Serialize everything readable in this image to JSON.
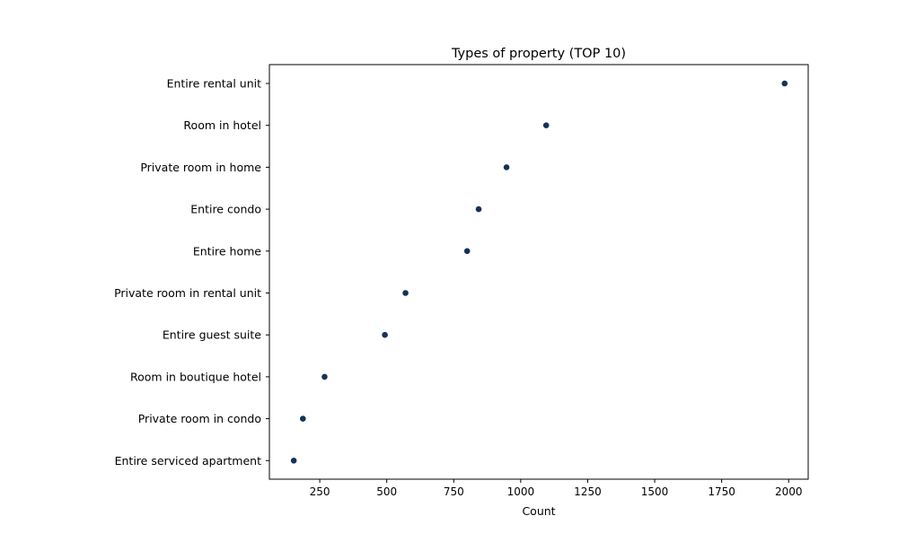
{
  "chart_data": {
    "type": "scatter",
    "title": "Types of property (TOP 10)",
    "xlabel": "Count",
    "ylabel": "",
    "xlim": [
      62,
      2073
    ],
    "xticks": [
      250,
      500,
      750,
      1000,
      1250,
      1500,
      1750,
      2000
    ],
    "grid": false,
    "marker_color": "#14325a",
    "categories": [
      "Entire rental unit",
      "Room in hotel",
      "Private room in home",
      "Entire condo",
      "Entire home",
      "Private room in rental unit",
      "Entire guest suite",
      "Room in boutique hotel",
      "Private room in condo",
      "Entire serviced apartment"
    ],
    "values": [
      1985,
      1095,
      947,
      843,
      800,
      570,
      493,
      268,
      187,
      153
    ]
  }
}
